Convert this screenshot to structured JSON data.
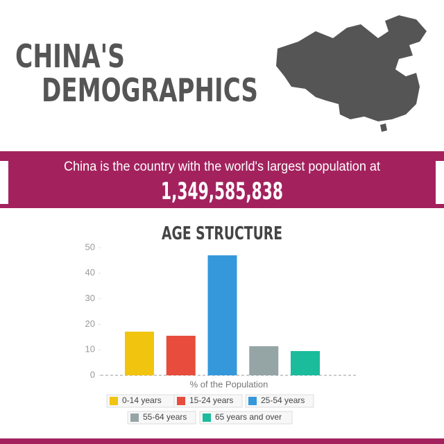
{
  "header": {
    "title_lines": [
      "CHINA'S",
      "DEMOGRAPHICS"
    ]
  },
  "banner": {
    "text": "China is the country with the world's largest population at",
    "population": "1,349,585,838"
  },
  "chart_data": {
    "type": "bar",
    "title": "AGE STRUCTURE",
    "x_label": "% of the Population",
    "categories": [
      "0-14 years",
      "15-24 years",
      "25-54 years",
      "55-64 years",
      "65 years and over"
    ],
    "values": [
      17.1,
      15.5,
      47,
      11.4,
      9.5
    ],
    "colors": [
      "#f1c40f",
      "#e74c3c",
      "#3498db",
      "#95a5a6",
      "#1abc9c"
    ],
    "ylim": [
      0,
      50
    ],
    "yticks": [
      0,
      10,
      20,
      30,
      40,
      50
    ],
    "legend": "bottom"
  }
}
